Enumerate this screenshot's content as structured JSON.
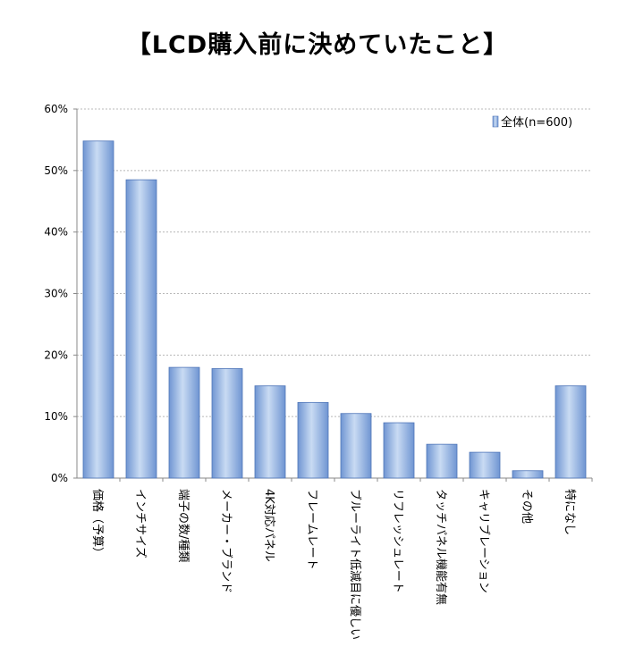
{
  "chart_data": {
    "type": "bar",
    "title": "【LCD購入前に決めていたこと】",
    "categories": [
      "価格（予算）",
      "インチサイズ",
      "端子の数/種類",
      "メーカー・ブランド",
      "4K対応パネル",
      "フレームレート",
      "ブルーライト低減目に優しい",
      "リフレッシュレート",
      "タッチパネル機能有無",
      "キャリブレーション",
      "その他",
      "特になし"
    ],
    "series": [
      {
        "name": "全体(n=600)",
        "values": [
          54.8,
          48.5,
          18.0,
          17.8,
          15.0,
          12.3,
          10.5,
          9.0,
          5.5,
          4.2,
          1.2,
          15.0
        ]
      }
    ],
    "ylim": [
      0,
      60
    ],
    "yticks": [
      "0%",
      "10%",
      "20%",
      "30%",
      "40%",
      "50%",
      "60%"
    ],
    "ytick_values": [
      0,
      10,
      20,
      30,
      40,
      50,
      60
    ],
    "grid": true,
    "legend_position": "top-right",
    "xlabel": "",
    "ylabel": ""
  }
}
